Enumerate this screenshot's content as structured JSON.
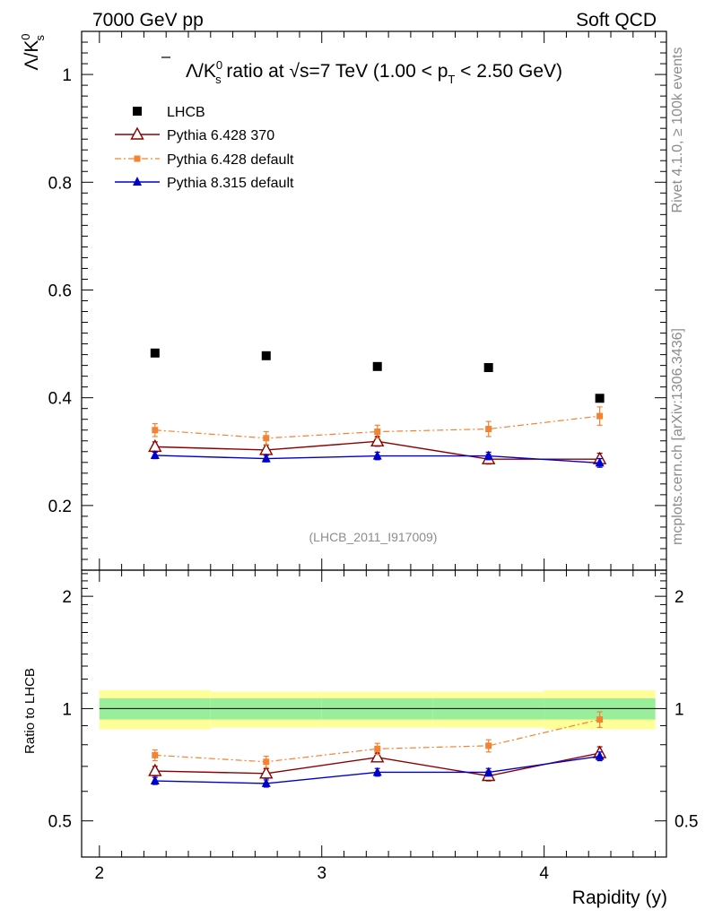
{
  "header": {
    "energy_label": "7000 GeV pp",
    "category_label": "Soft QCD"
  },
  "side_text": {
    "rivet": "Rivet 4.1.0, ≥ 100k events",
    "source": "mcplots.cern.ch [arXiv:1306.3436]"
  },
  "watermark": "(LHCB_2011_I917009)",
  "colors": {
    "data": "#000000",
    "py6_370": "#8b0000",
    "py6_default": "#f58231",
    "py8_default": "#0000cc",
    "band_inner": "#99ee99",
    "band_outer": "#ffff99"
  },
  "chart_data": [
    {
      "type": "scatter",
      "panel": "main",
      "title": {
        "part1": "Λ/K",
        "k_sup": "0",
        "k_sub": "s",
        "part2": " ratio at √s=7 TeV (1.00 < p",
        "pt_sub": "T",
        "part3": " < 2.50 GeV)"
      },
      "ylabel": {
        "main": "Λ/K",
        "sup": "0",
        "sub": "s"
      },
      "ylim": [
        0.08,
        1.08
      ],
      "y_ticks": [
        0.2,
        0.4,
        0.6,
        0.8,
        1
      ],
      "y_tick_labels": [
        "0.2",
        "0.4",
        "0.6",
        "0.8",
        "1"
      ],
      "x": [
        2.25,
        2.75,
        3.25,
        3.75,
        4.25
      ],
      "series": [
        {
          "name": "LHCB",
          "key": "data",
          "values": [
            0.483,
            0.478,
            0.458,
            0.456,
            0.399
          ],
          "errors": [
            0,
            0,
            0,
            0,
            0
          ]
        },
        {
          "name": "Pythia 6.428 370",
          "key": "py6_370",
          "values": [
            0.309,
            0.303,
            0.319,
            0.286,
            0.286
          ],
          "errors": [
            0.009,
            0.009,
            0.009,
            0.009,
            0.011
          ]
        },
        {
          "name": "Pythia 6.428 default",
          "key": "py6_default",
          "values": [
            0.34,
            0.325,
            0.337,
            0.342,
            0.366
          ],
          "errors": [
            0.012,
            0.012,
            0.012,
            0.014,
            0.017
          ]
        },
        {
          "name": "Pythia 8.315 default",
          "key": "py8_default",
          "values": [
            0.293,
            0.287,
            0.292,
            0.292,
            0.279
          ],
          "errors": [
            0.006,
            0.006,
            0.007,
            0.007,
            0.008
          ]
        }
      ]
    },
    {
      "type": "scatter",
      "panel": "ratio",
      "ylabel": "Ratio to LHCB",
      "xlabel": "Rapidity (y)",
      "xlim": [
        1.92,
        4.55
      ],
      "ylim": [
        0.4,
        2.35
      ],
      "log_y": true,
      "x_ticks": [
        2,
        3,
        4
      ],
      "x_tick_labels": [
        "2",
        "3",
        "4"
      ],
      "y_ticks": [
        0.5,
        1,
        2
      ],
      "y_tick_labels": [
        "0.5",
        "1",
        "2"
      ],
      "band_bins": [
        2.0,
        2.5,
        3.0,
        3.5,
        4.0,
        4.5
      ],
      "band_inner": [
        0.065,
        0.065,
        0.065,
        0.065,
        0.065
      ],
      "band_outer": [
        0.12,
        0.11,
        0.11,
        0.11,
        0.12
      ],
      "x": [
        2.25,
        2.75,
        3.25,
        3.75,
        4.25
      ],
      "series": [
        {
          "name": "Pythia 6.428 370",
          "key": "py6_370",
          "values": [
            0.68,
            0.67,
            0.74,
            0.66,
            0.76
          ],
          "errors": [
            0.02,
            0.02,
            0.02,
            0.02,
            0.03
          ]
        },
        {
          "name": "Pythia 6.428 default",
          "key": "py6_default",
          "values": [
            0.75,
            0.72,
            0.78,
            0.795,
            0.935
          ],
          "errors": [
            0.025,
            0.025,
            0.027,
            0.03,
            0.045
          ]
        },
        {
          "name": "Pythia 8.315 default",
          "key": "py8_default",
          "values": [
            0.64,
            0.63,
            0.675,
            0.675,
            0.745
          ],
          "errors": [
            0.014,
            0.014,
            0.016,
            0.016,
            0.02
          ]
        }
      ]
    }
  ]
}
